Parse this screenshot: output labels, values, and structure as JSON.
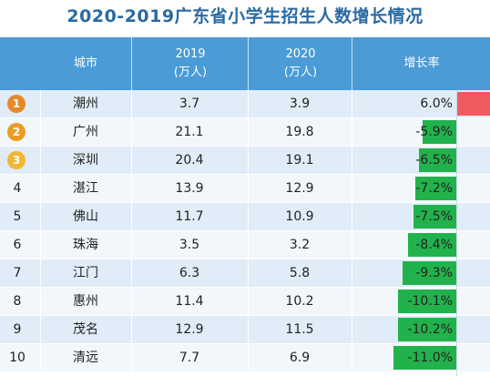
{
  "title": "2020-2019广东省小学生招生人数增长情况",
  "header": {
    "city": "城市",
    "y2019": "2019",
    "y2019_unit": "(万人)",
    "y2020": "2020",
    "y2020_unit": "(万人)",
    "growth": "增长率"
  },
  "colors": {
    "header_bg": "#4a9bd6",
    "title": "#2a6aa3",
    "positive_bar": "#f05a5f",
    "negative_bar": "#22b24c",
    "medal_1": "#e8872a",
    "medal_2": "#ec9c25",
    "medal_3": "#f2b632"
  },
  "chart_data": {
    "type": "table",
    "columns": [
      "城市",
      "2019\n(万人)",
      "2020\n(万人)",
      "增长率"
    ],
    "rows": [
      {
        "rank": "1",
        "city": "潮州",
        "y2019": "3.7",
        "y2020": "3.9",
        "growth": "6.0%",
        "growth_value": 6.0
      },
      {
        "rank": "2",
        "city": "广州",
        "y2019": "21.1",
        "y2020": "19.8",
        "growth": "-5.9%",
        "growth_value": -5.9
      },
      {
        "rank": "3",
        "city": "深圳",
        "y2019": "20.4",
        "y2020": "19.1",
        "growth": "-6.5%",
        "growth_value": -6.5
      },
      {
        "rank": "4",
        "city": "湛江",
        "y2019": "13.9",
        "y2020": "12.9",
        "growth": "-7.2%",
        "growth_value": -7.2
      },
      {
        "rank": "5",
        "city": "佛山",
        "y2019": "11.7",
        "y2020": "10.9",
        "growth": "-7.5%",
        "growth_value": -7.5
      },
      {
        "rank": "6",
        "city": "珠海",
        "y2019": "3.5",
        "y2020": "3.2",
        "growth": "-8.4%",
        "growth_value": -8.4
      },
      {
        "rank": "7",
        "city": "江门",
        "y2019": "6.3",
        "y2020": "5.8",
        "growth": "-9.3%",
        "growth_value": -9.3
      },
      {
        "rank": "8",
        "city": "惠州",
        "y2019": "11.4",
        "y2020": "10.2",
        "growth": "-10.1%",
        "growth_value": -10.1
      },
      {
        "rank": "9",
        "city": "茂名",
        "y2019": "12.9",
        "y2020": "11.5",
        "growth": "-10.2%",
        "growth_value": -10.2
      },
      {
        "rank": "10",
        "city": "清远",
        "y2019": "7.7",
        "y2020": "6.9",
        "growth": "-11.0%",
        "growth_value": -11.0
      }
    ]
  }
}
